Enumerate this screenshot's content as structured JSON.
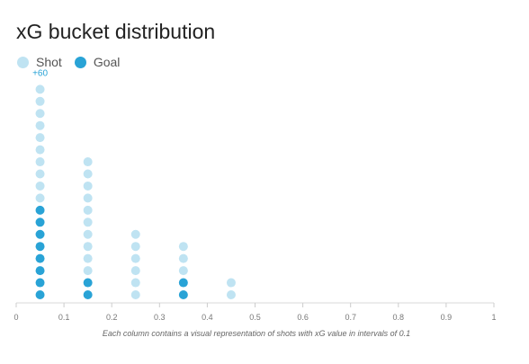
{
  "chart_data": {
    "type": "scatter",
    "title": "xG bucket distribution",
    "legend": [
      {
        "name": "Shot",
        "color": "#bfe3f2"
      },
      {
        "name": "Goal",
        "color": "#29a3d6"
      }
    ],
    "xlim": [
      0,
      1
    ],
    "x_ticks": [
      "0",
      "0.1",
      "0.2",
      "0.3",
      "0.4",
      "0.5",
      "0.6",
      "0.7",
      "0.8",
      "0.9",
      "1"
    ],
    "overflow_label": "+60",
    "caption": "Each column contains a visual representation of shots with xG value in intervals of 0.1",
    "columns": [
      {
        "bucket": 0.05,
        "shots": 10,
        "goals": 8
      },
      {
        "bucket": 0.15,
        "shots": 10,
        "goals": 2
      },
      {
        "bucket": 0.25,
        "shots": 6,
        "goals": 0
      },
      {
        "bucket": 0.35,
        "shots": 3,
        "goals": 2
      },
      {
        "bucket": 0.45,
        "shots": 2,
        "goals": 0
      }
    ]
  }
}
